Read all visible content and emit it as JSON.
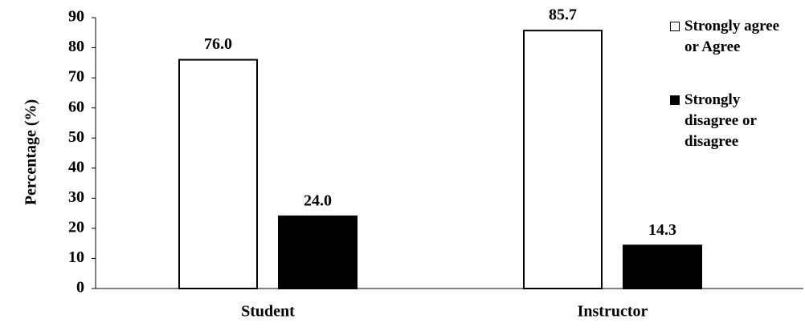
{
  "chart_data": {
    "type": "bar",
    "categories": [
      "Student",
      "Instructor"
    ],
    "series": [
      {
        "name": "Strongly agree or Agree",
        "color": "#ffffff",
        "values": [
          76.0,
          85.7
        ],
        "value_labels": [
          "76.0",
          "85.7"
        ]
      },
      {
        "name": "Strongly disagree or disagree",
        "color": "#000000",
        "values": [
          24.0,
          14.3
        ],
        "value_labels": [
          "24.0",
          "14.3"
        ]
      }
    ],
    "y_label": "Percentage (%)",
    "ylim": [
      0,
      90
    ],
    "yticks": [
      0,
      10,
      20,
      30,
      40,
      50,
      60,
      70,
      80,
      90
    ],
    "legend": "right"
  }
}
